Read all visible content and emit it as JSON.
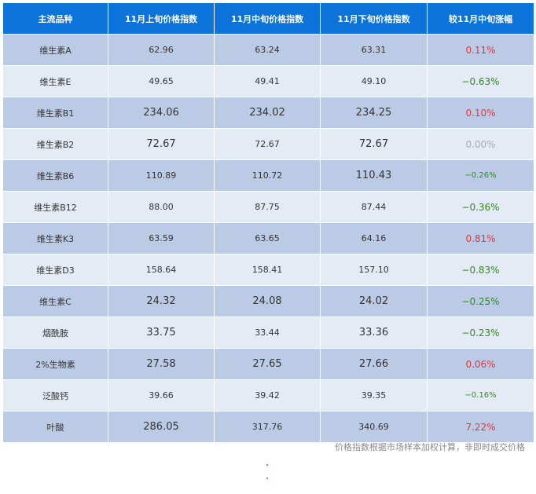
{
  "table": {
    "headers": [
      "主流品种",
      "11月上旬价格指数",
      "11月中旬价格指数",
      "11月下旬价格指数",
      "较11月中旬涨幅"
    ],
    "rows": [
      {
        "name": "维生素A",
        "early": "62.96",
        "mid": "63.24",
        "late": "63.31",
        "change": "0.11%",
        "trend": "up"
      },
      {
        "name": "维生素E",
        "early": "49.65",
        "mid": "49.41",
        "late": "49.10",
        "change": "−0.63%",
        "trend": "down"
      },
      {
        "name": "维生素B1",
        "early": "234.06",
        "mid": "234.02",
        "late": "234.25",
        "change": "0.10%",
        "trend": "up"
      },
      {
        "name": "维生素B2",
        "early": "72.67",
        "mid": "72.67",
        "late": "72.67",
        "change": "0.00%",
        "trend": "flat"
      },
      {
        "name": "维生素B6",
        "early": "110.89",
        "mid": "110.72",
        "late": "110.43",
        "change": "−0.26%",
        "trend": "down"
      },
      {
        "name": "维生素B12",
        "early": "88.00",
        "mid": "87.75",
        "late": "87.44",
        "change": "−0.36%",
        "trend": "down"
      },
      {
        "name": "维生素K3",
        "early": "63.59",
        "mid": "63.65",
        "late": "64.16",
        "change": "0.81%",
        "trend": "up"
      },
      {
        "name": "维生素D3",
        "early": "158.64",
        "mid": "158.41",
        "late": "157.10",
        "change": "−0.83%",
        "trend": "down"
      },
      {
        "name": "维生素C",
        "early": "24.32",
        "mid": "24.08",
        "late": "24.02",
        "change": "−0.25%",
        "trend": "down"
      },
      {
        "name": "烟酰胺",
        "early": "33.75",
        "mid": "33.44",
        "late": "33.36",
        "change": "−0.23%",
        "trend": "down"
      },
      {
        "name": "2%生物素",
        "early": "27.58",
        "mid": "27.65",
        "late": "27.66",
        "change": "0.06%",
        "trend": "up"
      },
      {
        "name": "泛酸钙",
        "early": "39.66",
        "mid": "39.42",
        "late": "39.35",
        "change": "−0.16%",
        "trend": "down"
      },
      {
        "name": "叶酸",
        "early": "286.05",
        "mid": "317.76",
        "late": "340.69",
        "change": "7.22%",
        "trend": "up"
      }
    ]
  },
  "note": "价格指数根据市场样本加权计算，非即时成交价格",
  "colors": {
    "header_bg": "#0b73d9",
    "row_odd": "#bccbe5",
    "row_even": "#e5ebf5",
    "up": "#e8323c",
    "down": "#2e8b1e",
    "flat": "#aaaaaa"
  }
}
